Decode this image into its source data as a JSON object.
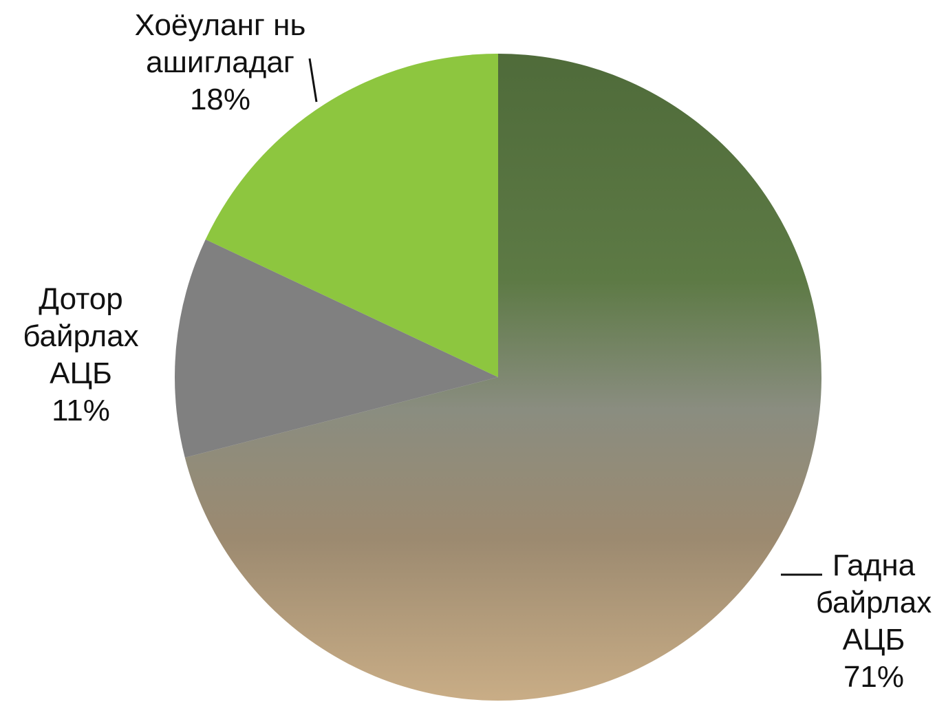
{
  "chart_data": {
    "type": "pie",
    "categories": [
      "Гадна байрлах АЦБ",
      "Дотор байрлах АЦБ",
      "Хоёуланг нь ашигладаг"
    ],
    "values": [
      71,
      11,
      18
    ],
    "value_labels": [
      "71%",
      "11%",
      "18%"
    ],
    "colors": [
      "#5d7a45",
      "#808080",
      "#8dc63f"
    ]
  }
}
